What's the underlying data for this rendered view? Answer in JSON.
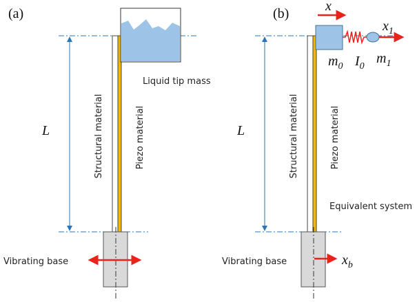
{
  "panel_a": {
    "label": "(a)",
    "length": "L",
    "structural": "Structural material",
    "piezo": "Piezo material",
    "tip_mass": "Liquid tip mass",
    "base": "Vibrating base"
  },
  "panel_b": {
    "label": "(b)",
    "length": "L",
    "structural": "Structural material",
    "piezo": "Piezo material",
    "equivalent": "Equivalent system",
    "base": "Vibrating base",
    "x": "x",
    "x1": {
      "symbol": "x",
      "sub": "1"
    },
    "m0": {
      "symbol": "m",
      "sub": "0"
    },
    "I0": {
      "symbol": "I",
      "sub": "0"
    },
    "m1": {
      "symbol": "m",
      "sub": "1"
    },
    "xb": {
      "symbol": "x",
      "sub": "b"
    }
  }
}
